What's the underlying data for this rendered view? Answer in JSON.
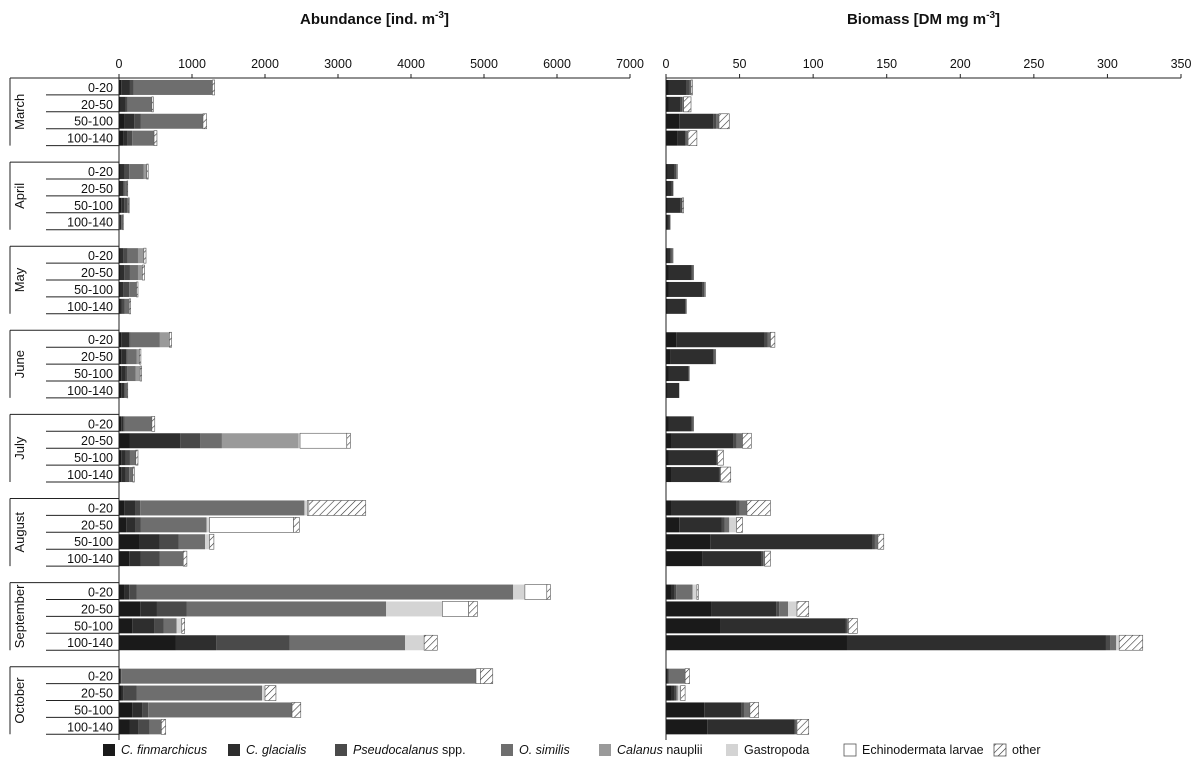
{
  "chart_data": {
    "type": "bar",
    "orientation": "horizontal",
    "stacked": true,
    "grid": false,
    "legend_position": "bottom",
    "months": [
      "March",
      "April",
      "May",
      "June",
      "July",
      "August",
      "September",
      "October"
    ],
    "layers": [
      "0-20",
      "20-50",
      "50-100",
      "100-140"
    ],
    "series": [
      {
        "name": "C. finmarchicus",
        "name_italic": "C. finmarchicus",
        "name_plain": "",
        "color": "#1a1a1a",
        "pattern": "none"
      },
      {
        "name": "C. glacialis",
        "name_italic": "C. glacialis",
        "name_plain": "",
        "color": "#2e2e2e",
        "pattern": "none"
      },
      {
        "name": "Pseudocalanus spp.",
        "name_italic": "Pseudocalanus",
        "name_plain": " spp.",
        "color": "#4a4a4a",
        "pattern": "none"
      },
      {
        "name": "O. similis",
        "name_italic": "O.  similis",
        "name_plain": "",
        "color": "#6e6e6e",
        "pattern": "none"
      },
      {
        "name": "Calanus nauplii",
        "name_italic": "Calanus",
        "name_plain": "  nauplii",
        "color": "#9a9a9a",
        "pattern": "none"
      },
      {
        "name": "Gastropoda",
        "name_italic": "",
        "name_plain": "Gastropoda",
        "color": "#d4d4d4",
        "pattern": "none"
      },
      {
        "name": "Echinodermata larvae",
        "name_italic": "",
        "name_plain": "Echinodermata larvae",
        "color": "#ffffff",
        "pattern": "none"
      },
      {
        "name": "other",
        "name_italic": "",
        "name_plain": "other",
        "color": "#ffffff",
        "pattern": "hatch"
      }
    ],
    "panels": [
      {
        "title": "Abundance [ind. m",
        "title_sup": "-3",
        "title_end": "]",
        "xlim": [
          0,
          7000
        ],
        "ticks": [
          0,
          1000,
          2000,
          3000,
          4000,
          5000,
          6000,
          7000
        ],
        "values": [
          [
            [
              30,
              120,
              50,
              1080,
              0,
              0,
              0,
              30
            ],
            [
              20,
              70,
              30,
              330,
              0,
              0,
              0,
              20
            ],
            [
              80,
              130,
              90,
              850,
              0,
              0,
              0,
              50
            ],
            [
              60,
              60,
              60,
              300,
              0,
              0,
              0,
              40
            ]
          ],
          [
            [
              20,
              60,
              60,
              200,
              40,
              0,
              0,
              20
            ],
            [
              20,
              40,
              20,
              30,
              0,
              0,
              0,
              10
            ],
            [
              30,
              40,
              40,
              20,
              0,
              0,
              0,
              10
            ],
            [
              10,
              20,
              10,
              10,
              0,
              0,
              0,
              10
            ]
          ],
          [
            [
              20,
              40,
              60,
              140,
              80,
              0,
              0,
              30
            ],
            [
              20,
              50,
              80,
              110,
              60,
              0,
              0,
              30
            ],
            [
              20,
              40,
              80,
              100,
              0,
              0,
              0,
              20
            ],
            [
              20,
              20,
              40,
              60,
              0,
              0,
              0,
              20
            ]
          ],
          [
            [
              30,
              110,
              20,
              400,
              130,
              0,
              0,
              30
            ],
            [
              30,
              70,
              20,
              120,
              40,
              0,
              0,
              20
            ],
            [
              30,
              60,
              20,
              120,
              60,
              0,
              0,
              20
            ],
            [
              30,
              40,
              20,
              20,
              0,
              0,
              0,
              10
            ]
          ],
          [
            [
              30,
              30,
              20,
              370,
              0,
              0,
              0,
              40
            ],
            [
              150,
              690,
              270,
              300,
              1050,
              20,
              640,
              50
            ],
            [
              30,
              60,
              60,
              80,
              0,
              0,
              0,
              30
            ],
            [
              30,
              60,
              50,
              50,
              0,
              0,
              0,
              20
            ]
          ],
          [
            [
              70,
              160,
              60,
              2250,
              0,
              40,
              20,
              780
            ],
            [
              100,
              130,
              70,
              900,
              0,
              40,
              1150,
              80
            ],
            [
              280,
              280,
              260,
              360,
              0,
              60,
              0,
              60
            ],
            [
              140,
              160,
              260,
              320,
              0,
              0,
              0,
              50
            ]
          ],
          [
            [
              80,
              60,
              100,
              5160,
              0,
              160,
              300,
              50
            ],
            [
              290,
              230,
              410,
              2730,
              0,
              770,
              360,
              120
            ],
            [
              180,
              300,
              130,
              180,
              0,
              70,
              0,
              40
            ],
            [
              780,
              550,
              1010,
              1580,
              0,
              260,
              0,
              180
            ]
          ],
          [
            [
              20,
              0,
              10,
              4860,
              0,
              0,
              60,
              170
            ],
            [
              40,
              20,
              180,
              1720,
              0,
              40,
              0,
              150
            ],
            [
              180,
              140,
              80,
              1970,
              0,
              0,
              0,
              120
            ],
            [
              150,
              120,
              150,
              160,
              0,
              0,
              0,
              60
            ]
          ]
        ]
      },
      {
        "title": "Biomass [DM mg m",
        "title_sup": "-3",
        "title_end": "]",
        "xlim": [
          0,
          350
        ],
        "ticks": [
          0,
          50,
          100,
          150,
          200,
          250,
          300,
          350
        ],
        "values": [
          [
            [
              2,
              12,
              2,
              1,
              0,
              0,
              0,
              1
            ],
            [
              2,
              8,
              1,
              1,
              0,
              0,
              0,
              5
            ],
            [
              9,
              23,
              2,
              2,
              0,
              0,
              0,
              7
            ],
            [
              8,
              5,
              1,
              1,
              0,
              0,
              0,
              6
            ]
          ],
          [
            [
              1,
              5,
              1,
              1,
              0,
              0,
              0,
              0
            ],
            [
              1,
              3,
              1,
              0,
              0,
              0,
              0,
              0
            ],
            [
              1,
              9,
              1,
              0,
              0,
              0,
              0,
              1
            ],
            [
              1,
              1,
              1,
              0,
              0,
              0,
              0,
              0
            ]
          ],
          [
            [
              1,
              2,
              1,
              1,
              0,
              0,
              0,
              0
            ],
            [
              2,
              15,
              1,
              1,
              0,
              0,
              0,
              0
            ],
            [
              2,
              23,
              1,
              1,
              0,
              0,
              0,
              0
            ],
            [
              1,
              12,
              1,
              0,
              0,
              0,
              0,
              0
            ]
          ],
          [
            [
              7,
              60,
              2,
              2,
              0,
              0,
              0,
              3
            ],
            [
              3,
              29,
              1,
              1,
              0,
              0,
              0,
              0
            ],
            [
              2,
              13,
              1,
              0,
              0,
              0,
              0,
              0
            ],
            [
              1,
              8,
              0,
              0,
              0,
              0,
              0,
              0
            ]
          ],
          [
            [
              2,
              15,
              1,
              1,
              0,
              0,
              0,
              0
            ],
            [
              4,
              42,
              2,
              4,
              0,
              0,
              0,
              6
            ],
            [
              2,
              32,
              1,
              0,
              0,
              0,
              0,
              4
            ],
            [
              4,
              32,
              1,
              0,
              0,
              0,
              0,
              7
            ]
          ],
          [
            [
              4,
              44,
              2,
              5,
              0,
              0,
              0,
              16
            ],
            [
              9,
              29,
              2,
              3,
              0,
              5,
              0,
              4
            ],
            [
              30,
              110,
              2,
              2,
              0,
              0,
              0,
              4
            ],
            [
              25,
              40,
              1,
              1,
              0,
              0,
              0,
              4
            ]
          ],
          [
            [
              4,
              2,
              1,
              11,
              0,
              3,
              0,
              1
            ],
            [
              31,
              44,
              2,
              6,
              0,
              6,
              0,
              8
            ],
            [
              37,
              85,
              1,
              1,
              0,
              0,
              0,
              6
            ],
            [
              123,
              176,
              3,
              4,
              0,
              2,
              0,
              16
            ]
          ],
          [
            [
              1,
              0,
              1,
              11,
              0,
              0,
              0,
              3
            ],
            [
              4,
              2,
              1,
              1,
              0,
              2,
              0,
              3
            ],
            [
              26,
              25,
              2,
              4,
              0,
              0,
              0,
              6
            ],
            [
              28,
              59,
              1,
              1,
              0,
              0,
              0,
              8
            ]
          ]
        ]
      }
    ]
  }
}
